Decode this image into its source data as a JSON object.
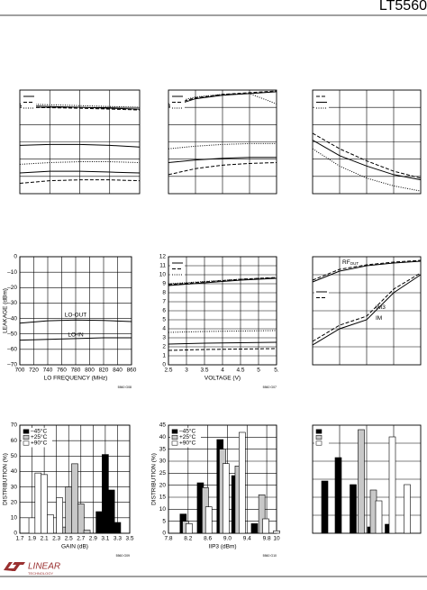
{
  "header": {
    "part": "LT5560"
  },
  "chart_data": [
    {
      "type": "line",
      "xlim": [
        0,
        4
      ],
      "ylim": [
        0,
        6
      ],
      "grid_divisions": [
        4,
        6
      ],
      "legend": "upper-left",
      "series": [
        {
          "dash": "solid",
          "x": [
            0,
            1,
            2,
            3,
            4
          ],
          "values": [
            5.1,
            5.05,
            5.0,
            4.95,
            4.9
          ]
        },
        {
          "dash": "dashed",
          "x": [
            0,
            1,
            2,
            3,
            4
          ],
          "values": [
            5.0,
            4.98,
            4.95,
            4.9,
            4.85
          ]
        },
        {
          "dash": "dotted",
          "x": [
            0,
            1,
            2,
            3,
            4
          ],
          "values": [
            5.2,
            5.15,
            5.1,
            5.05,
            5.0
          ]
        },
        {
          "dash": "solid",
          "x": [
            0,
            1,
            2,
            3,
            4
          ],
          "values": [
            2.8,
            2.85,
            2.85,
            2.8,
            2.7
          ]
        },
        {
          "dash": "dotted",
          "x": [
            0,
            1,
            2,
            3,
            4
          ],
          "values": [
            1.7,
            1.8,
            1.85,
            1.85,
            1.8
          ]
        },
        {
          "dash": "solid",
          "x": [
            0,
            1,
            2,
            3,
            4
          ],
          "values": [
            1.2,
            1.3,
            1.3,
            1.25,
            1.2
          ]
        },
        {
          "dash": "dashed",
          "x": [
            0,
            1,
            2,
            3,
            4
          ],
          "values": [
            0.6,
            0.75,
            0.8,
            0.8,
            0.75
          ]
        }
      ]
    },
    {
      "type": "line",
      "xlim": [
        0,
        4
      ],
      "ylim": [
        0,
        6
      ],
      "grid_divisions": [
        4,
        6
      ],
      "legend": "upper-left",
      "series": [
        {
          "dash": "solid",
          "x": [
            0,
            1,
            2,
            3,
            4
          ],
          "values": [
            5.0,
            5.5,
            5.7,
            5.8,
            5.9
          ]
        },
        {
          "dash": "dashed",
          "x": [
            0,
            1,
            2,
            3,
            4
          ],
          "values": [
            5.1,
            5.55,
            5.75,
            5.85,
            5.95
          ]
        },
        {
          "dash": "dotted",
          "x": [
            0,
            1,
            2,
            3,
            4
          ],
          "values": [
            5.2,
            5.6,
            5.75,
            5.8,
            5.2
          ]
        },
        {
          "dash": "dotted",
          "x": [
            0,
            1,
            2,
            3,
            4
          ],
          "values": [
            2.6,
            2.75,
            2.85,
            2.9,
            2.9
          ]
        },
        {
          "dash": "solid",
          "x": [
            0,
            1,
            2,
            3,
            4
          ],
          "values": [
            1.8,
            1.95,
            2.05,
            2.1,
            2.1
          ]
        },
        {
          "dash": "dashed",
          "x": [
            0,
            1,
            2,
            3,
            4
          ],
          "values": [
            1.1,
            1.45,
            1.65,
            1.75,
            1.8
          ]
        }
      ]
    },
    {
      "type": "line",
      "xlim": [
        0,
        4
      ],
      "ylim": [
        0,
        6
      ],
      "grid_divisions": [
        4,
        6
      ],
      "legend": "upper-left",
      "series": [
        {
          "dash": "dashed",
          "x": [
            0,
            1,
            2,
            3,
            4
          ],
          "values": [
            3.5,
            2.6,
            1.9,
            1.3,
            0.9
          ]
        },
        {
          "dash": "solid",
          "x": [
            0,
            1,
            2,
            3,
            4
          ],
          "values": [
            3.1,
            2.2,
            1.6,
            1.1,
            0.8
          ]
        },
        {
          "dash": "dotted",
          "x": [
            0,
            1,
            2,
            3,
            4
          ],
          "values": [
            2.6,
            1.6,
            0.9,
            0.45,
            0.15
          ]
        }
      ]
    },
    {
      "type": "line",
      "xlim": [
        700,
        860
      ],
      "ylim": [
        -70,
        0
      ],
      "xticks": [
        700,
        720,
        740,
        760,
        780,
        800,
        820,
        840,
        860
      ],
      "yticks": [
        0,
        {
          "value": -10,
          "label": "–10"
        },
        {
          "value": -20,
          "label": "–20"
        },
        {
          "value": -30,
          "label": "–30"
        },
        {
          "value": -40,
          "label": "–40"
        },
        {
          "value": -50,
          "label": "–50"
        },
        {
          "value": -60,
          "label": "–60"
        },
        {
          "value": -70,
          "label": "–70"
        }
      ],
      "xlabel": "LO FREQUENCY (MHz)",
      "ylabel": "LEAKAGE (dBm)",
      "note": "5560 G08",
      "annotations": [
        "LO-OUT",
        "LO-IN"
      ],
      "series": [
        {
          "dash": "solid",
          "x": [
            700,
            740,
            780,
            820,
            860
          ],
          "values": [
            -43,
            -41.5,
            -41,
            -41.3,
            -42
          ]
        },
        {
          "dash": "solid",
          "x": [
            700,
            740,
            780,
            820,
            860
          ],
          "values": [
            -54,
            -53.5,
            -53,
            -52.5,
            -52.5
          ]
        }
      ]
    },
    {
      "type": "line",
      "xlim": [
        2.5,
        5.5
      ],
      "ylim": [
        0,
        12
      ],
      "xticks": [
        2.5,
        3,
        3.5,
        4,
        4.5,
        5,
        {
          "value": 5.5,
          "label": "5."
        }
      ],
      "yticks": [
        0,
        1,
        2,
        3,
        4,
        5,
        6,
        7,
        8,
        9,
        10,
        11,
        12
      ],
      "xlabel": "VOLTAGE (V)",
      "note": "5560 G07",
      "legend": "upper-left",
      "series": [
        {
          "dash": "solid",
          "x": [
            2.5,
            3.5,
            4.5,
            5.5
          ],
          "values": [
            8.8,
            9.1,
            9.4,
            9.6
          ]
        },
        {
          "dash": "dashed",
          "x": [
            2.5,
            3.5,
            4.5,
            5.5
          ],
          "values": [
            8.9,
            9.2,
            9.5,
            9.7
          ]
        },
        {
          "dash": "dotted",
          "x": [
            2.5,
            3.5,
            4.5,
            5.5
          ],
          "values": [
            9.0,
            9.25,
            9.5,
            9.7
          ]
        },
        {
          "dash": "dotted",
          "x": [
            2.5,
            3.5,
            4.5,
            5.5
          ],
          "values": [
            3.6,
            3.7,
            3.75,
            3.8
          ]
        },
        {
          "dash": "solid",
          "x": [
            2.5,
            3.5,
            4.5,
            5.5
          ],
          "values": [
            2.3,
            2.4,
            2.45,
            2.5
          ]
        },
        {
          "dash": "dashed",
          "x": [
            2.5,
            3.5,
            4.5,
            5.5
          ],
          "values": [
            1.6,
            1.7,
            1.75,
            1.8
          ]
        }
      ]
    },
    {
      "type": "line",
      "xlim": [
        0,
        4
      ],
      "ylim": [
        0,
        6
      ],
      "grid_divisions": [
        4,
        6
      ],
      "legend": "center-left",
      "annotations": [
        {
          "text": "RF",
          "sub": "OUT"
        },
        {
          "text": "IM3"
        },
        {
          "text": "IM"
        }
      ],
      "series": [
        {
          "dash": "solid",
          "x": [
            0,
            1,
            2,
            3,
            4
          ],
          "values": [
            4.6,
            5.2,
            5.5,
            5.65,
            5.75
          ]
        },
        {
          "dash": "dashed",
          "x": [
            0,
            1,
            2,
            3,
            4
          ],
          "values": [
            4.7,
            5.3,
            5.55,
            5.7,
            5.8
          ]
        },
        {
          "dash": "solid",
          "x": [
            0,
            1,
            2,
            3,
            4
          ],
          "values": [
            1.1,
            2.0,
            2.5,
            4.0,
            5.0
          ]
        },
        {
          "dash": "dashed",
          "x": [
            0,
            1,
            2,
            3,
            4
          ],
          "values": [
            1.3,
            2.2,
            2.7,
            4.2,
            5.1
          ]
        }
      ]
    },
    {
      "type": "bar",
      "xlim": [
        1.7,
        3.5
      ],
      "ylim": [
        0,
        70
      ],
      "xticks": [
        1.7,
        1.9,
        2.1,
        2.3,
        2.5,
        2.7,
        2.9,
        3.1,
        3.3,
        3.5
      ],
      "yticks": [
        0,
        10,
        20,
        30,
        40,
        50,
        60,
        70
      ],
      "xlabel": "GAIN (dB)",
      "ylabel": "DISTRIBUTION (%)",
      "note": "5560 G09",
      "legend": "upper-left",
      "series": [
        {
          "name": "–45°C",
          "color": "#000000",
          "x": [
            3.0,
            3.1,
            3.2,
            3.3
          ],
          "values": [
            14,
            51,
            28,
            7
          ]
        },
        {
          "name": "+25°C",
          "color": "#c8c8c8",
          "x": [
            2.4,
            2.5,
            2.6,
            2.7,
            2.8
          ],
          "values": [
            4,
            30,
            45,
            19,
            2
          ]
        },
        {
          "name": "+90°C",
          "color": "#ffffff",
          "x": [
            1.9,
            2.0,
            2.1,
            2.2,
            2.35
          ],
          "values": [
            10,
            39,
            38,
            12,
            23
          ]
        }
      ]
    },
    {
      "type": "bar",
      "xlim": [
        7.8,
        10
      ],
      "ylim": [
        0,
        45
      ],
      "xticks": [
        7.8,
        8.2,
        8.6,
        {
          "value": 9,
          "label": "9.0"
        },
        9.4,
        9.8,
        10
      ],
      "yticks": [
        0,
        5,
        10,
        15,
        20,
        25,
        30,
        35,
        40,
        45
      ],
      "xlabel": "IIP3 (dBm)",
      "ylabel": "DISTRIBUTION (%)",
      "note": "5560 G10",
      "legend": "upper-left",
      "series": [
        {
          "name": "–45°C",
          "color": "#000000",
          "x": [
            8.1,
            8.45,
            8.85,
            9.15,
            9.55
          ],
          "values": [
            8,
            21,
            39,
            24,
            4
          ]
        },
        {
          "name": "+25°C",
          "color": "#c8c8c8",
          "x": [
            8.15,
            8.55,
            8.9,
            9.22,
            9.7
          ],
          "values": [
            5,
            19,
            35,
            28,
            16
          ]
        },
        {
          "name": "+90°C",
          "color": "#ffffff",
          "x": [
            8.22,
            8.62,
            8.97,
            9.3,
            9.78,
            10.0
          ],
          "values": [
            4,
            11,
            29,
            42,
            6,
            1
          ]
        }
      ]
    },
    {
      "type": "bar",
      "xlim": [
        0,
        4
      ],
      "ylim": [
        0,
        6
      ],
      "grid_divisions": [
        4,
        6
      ],
      "legend": "upper-left",
      "series": [
        {
          "color": "#000000",
          "x": [
            0.45,
            0.95,
            1.5,
            2.15,
            2.8
          ],
          "values": [
            2.9,
            4.2,
            2.7,
            0.35,
            0.5
          ]
        },
        {
          "color": "#c8c8c8",
          "x": [
            1.8,
            2.25
          ],
          "values": [
            5.75,
            2.4
          ]
        },
        {
          "color": "#ffffff",
          "x": [
            2.45,
            2.95,
            3.5
          ],
          "values": [
            1.8,
            5.35,
            2.7
          ]
        }
      ]
    }
  ],
  "footer": {
    "logo": "LINEAR",
    "tagline": "TECHNOLOGY"
  }
}
